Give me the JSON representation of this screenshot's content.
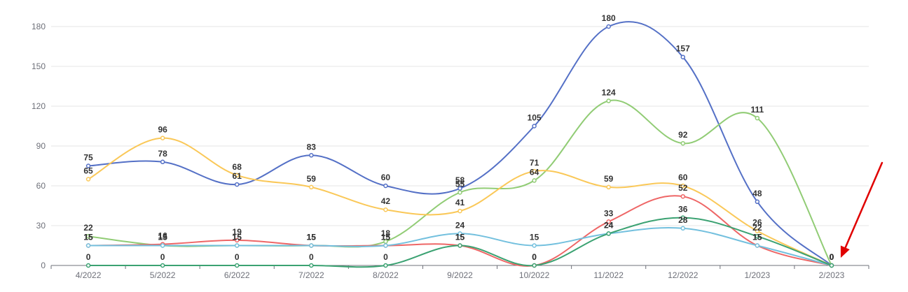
{
  "chart_data": {
    "type": "line",
    "categories": [
      "4/2022",
      "5/2022",
      "6/2022",
      "7/2022",
      "8/2022",
      "9/2022",
      "10/2022",
      "11/2022",
      "12/2022",
      "1/2023",
      "2/2023"
    ],
    "ylim": [
      0,
      180
    ],
    "yticks": [
      0,
      30,
      60,
      90,
      120,
      150,
      180
    ],
    "grid": true,
    "smooth": true,
    "series": [
      {
        "color": "#5470c6",
        "values": [
          75,
          78,
          61,
          83,
          60,
          58,
          105,
          180,
          157,
          48,
          0
        ]
      },
      {
        "color": "#91cc75",
        "values": [
          22,
          15,
          15,
          15,
          18,
          55,
          64,
          124,
          92,
          111,
          0
        ]
      },
      {
        "color": "#fac858",
        "values": [
          65,
          96,
          68,
          59,
          42,
          41,
          71,
          59,
          60,
          26,
          0
        ]
      },
      {
        "color": "#ee6666",
        "values": [
          15,
          16,
          19,
          15,
          15,
          15,
          0,
          33,
          52,
          15,
          0
        ]
      },
      {
        "color": "#73c0de",
        "values": [
          15,
          15,
          15,
          15,
          15,
          24,
          15,
          24,
          28,
          15,
          0
        ]
      },
      {
        "color": "#3ba272",
        "values": [
          0,
          0,
          0,
          0,
          0,
          15,
          0,
          24,
          36,
          22,
          0
        ]
      }
    ],
    "annotation": {
      "type": "arrow",
      "color": "#e00000",
      "points_to": "2/2023"
    }
  }
}
